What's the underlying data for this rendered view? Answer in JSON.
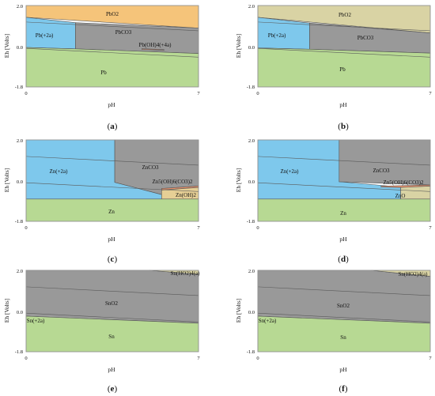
{
  "axes": {
    "xlabel": "pH",
    "ylabel": "Eh [Volts]",
    "xticks": [
      "0",
      "7"
    ],
    "yticks": [
      "2.0",
      "0.0",
      "-1.8"
    ],
    "xlim": [
      0,
      7
    ],
    "ylim": [
      -1.8,
      2.0
    ]
  },
  "colors": {
    "blue": "#7ec8ec",
    "green": "#b7d993",
    "gray": "#999999",
    "orange": "#f5c47a",
    "khaki": "#d9d3a4",
    "tan": "#e6cf95",
    "salmon": "#e58f6a"
  },
  "panels": [
    {
      "letter": "a",
      "caption": "(a)",
      "labels": {
        "r0": "PbO2",
        "r1": "Pb(+2a)",
        "r2": "PbCO3",
        "r3": "Pb(OH)4(+4a)",
        "r4": "Pb"
      },
      "regions": [
        {
          "fill": "orange",
          "points": [
            [
              0,
              2
            ],
            [
              7,
              2
            ],
            [
              7,
              0.95
            ],
            [
              0,
              1.45
            ]
          ]
        },
        {
          "fill": "gray",
          "points": [
            [
              2,
              1.2
            ],
            [
              7,
              0.95
            ],
            [
              7,
              -0.24
            ],
            [
              2,
              -0.02
            ]
          ]
        },
        {
          "fill": "blue",
          "points": [
            [
              0,
              1.45
            ],
            [
              2,
              1.2
            ],
            [
              2,
              -0.02
            ],
            [
              0,
              0.04
            ]
          ]
        },
        {
          "fill": "salmon",
          "points": [
            [
              4.7,
              -0.01
            ],
            [
              5.6,
              -0.06
            ],
            [
              5.6,
              -0.09
            ],
            [
              4.7,
              -0.05
            ]
          ]
        },
        {
          "fill": "green",
          "points": [
            [
              0,
              0.04
            ],
            [
              2,
              -0.02
            ],
            [
              7,
              -0.24
            ],
            [
              7,
              -1.8
            ],
            [
              0,
              -1.8
            ]
          ]
        }
      ],
      "water_lines": [
        [
          [
            0,
            1.23
          ],
          [
            7,
            0.82
          ]
        ],
        [
          [
            0,
            0.0
          ],
          [
            7,
            -0.41
          ]
        ]
      ]
    },
    {
      "letter": "b",
      "caption": "(b)",
      "labels": {
        "r0": "PbO2",
        "r1": "Pb(+2a)",
        "r2": "PbCO3",
        "r3": "Pb"
      },
      "regions": [
        {
          "fill": "khaki",
          "points": [
            [
              0,
              2
            ],
            [
              7,
              2
            ],
            [
              7,
              0.72
            ],
            [
              0,
              1.45
            ]
          ]
        },
        {
          "fill": "gray",
          "points": [
            [
              2.1,
              1.18
            ],
            [
              7,
              0.72
            ],
            [
              7,
              -0.22
            ],
            [
              2.1,
              -0.04
            ]
          ]
        },
        {
          "fill": "blue",
          "points": [
            [
              0,
              1.45
            ],
            [
              2.1,
              1.18
            ],
            [
              2.1,
              -0.04
            ],
            [
              0,
              0.02
            ]
          ]
        },
        {
          "fill": "green",
          "points": [
            [
              0,
              0.02
            ],
            [
              2.1,
              -0.04
            ],
            [
              7,
              -0.22
            ],
            [
              7,
              -1.8
            ],
            [
              0,
              -1.8
            ]
          ]
        }
      ],
      "water_lines": [
        [
          [
            0,
            1.23
          ],
          [
            7,
            0.82
          ]
        ],
        [
          [
            0,
            0.0
          ],
          [
            7,
            -0.41
          ]
        ]
      ]
    },
    {
      "letter": "c",
      "caption": "(c)",
      "labels": {
        "r0": "Zn(+2a)",
        "r1": "ZnCO3",
        "r2": "Zn5(OH)6(CO3)2",
        "r3": "Zn(OH)2",
        "r4": "Zn"
      },
      "regions": [
        {
          "fill": "blue",
          "points": [
            [
              0,
              2
            ],
            [
              3.6,
              2
            ],
            [
              3.6,
              0.02
            ],
            [
              5.5,
              -0.55
            ],
            [
              5.5,
              -0.76
            ],
            [
              0,
              -0.76
            ]
          ]
        },
        {
          "fill": "gray",
          "points": [
            [
              3.6,
              2
            ],
            [
              7,
              2
            ],
            [
              7,
              -0.15
            ],
            [
              5.5,
              -0.27
            ],
            [
              5.5,
              -0.55
            ],
            [
              3.6,
              0.02
            ]
          ]
        },
        {
          "fill": "salmon",
          "points": [
            [
              5.5,
              -0.27
            ],
            [
              7,
              -0.15
            ],
            [
              7,
              -0.22
            ],
            [
              5.5,
              -0.34
            ]
          ]
        },
        {
          "fill": "tan",
          "points": [
            [
              5.5,
              -0.34
            ],
            [
              7,
              -0.22
            ],
            [
              7,
              -0.76
            ],
            [
              5.5,
              -0.76
            ]
          ]
        },
        {
          "fill": "green",
          "points": [
            [
              0,
              -0.76
            ],
            [
              7,
              -0.76
            ],
            [
              7,
              -1.8
            ],
            [
              0,
              -1.8
            ]
          ]
        }
      ],
      "water_lines": [
        [
          [
            0,
            1.23
          ],
          [
            7,
            0.82
          ]
        ],
        [
          [
            0,
            0.0
          ],
          [
            7,
            -0.41
          ]
        ]
      ]
    },
    {
      "letter": "d",
      "caption": "(d)",
      "labels": {
        "r0": "Zn(+2a)",
        "r1": "ZnCO3",
        "r2": "Zn5(OH)6(CO3)2",
        "r3": "ZnO",
        "r4": "Zn"
      },
      "regions": [
        {
          "fill": "blue",
          "points": [
            [
              0,
              2
            ],
            [
              3.3,
              2
            ],
            [
              3.3,
              0.05
            ],
            [
              5.8,
              -0.2
            ],
            [
              5.8,
              -0.76
            ],
            [
              0,
              -0.76
            ]
          ]
        },
        {
          "fill": "gray",
          "points": [
            [
              3.3,
              2
            ],
            [
              7,
              2
            ],
            [
              7,
              -0.1
            ],
            [
              3.3,
              0.05
            ]
          ]
        },
        {
          "fill": "salmon",
          "points": [
            [
              5.0,
              -0.16
            ],
            [
              7,
              -0.1
            ],
            [
              7,
              -0.16
            ],
            [
              5.8,
              -0.22
            ],
            [
              5.0,
              -0.2
            ]
          ]
        },
        {
          "fill": "khaki",
          "points": [
            [
              5.8,
              -0.22
            ],
            [
              7,
              -0.16
            ],
            [
              7,
              -0.76
            ],
            [
              5.8,
              -0.76
            ]
          ]
        },
        {
          "fill": "green",
          "points": [
            [
              0,
              -0.76
            ],
            [
              7,
              -0.76
            ],
            [
              7,
              -1.8
            ],
            [
              0,
              -1.8
            ]
          ]
        }
      ],
      "water_lines": [
        [
          [
            0,
            1.23
          ],
          [
            7,
            0.82
          ]
        ],
        [
          [
            0,
            0.0
          ],
          [
            7,
            -0.41
          ]
        ]
      ]
    },
    {
      "letter": "e",
      "caption": "(e)",
      "labels": {
        "r0": "Sn(HO2)4(a)",
        "r1": "SnO2",
        "r2": "Sn(+2a)",
        "r3": "Sn"
      },
      "regions": [
        {
          "fill": "gray",
          "points": [
            [
              0,
              2
            ],
            [
              5.0,
              2
            ],
            [
              7,
              1.82
            ],
            [
              7,
              -0.47
            ],
            [
              0,
              -0.14
            ]
          ]
        },
        {
          "fill": "khaki",
          "points": [
            [
              5.0,
              2
            ],
            [
              7,
              2
            ],
            [
              7,
              1.82
            ]
          ]
        },
        {
          "fill": "blue",
          "points": [
            [
              0,
              -0.14
            ],
            [
              0.5,
              -0.16
            ],
            [
              0,
              -0.3
            ]
          ]
        },
        {
          "fill": "green",
          "points": [
            [
              0,
              -0.14
            ],
            [
              7,
              -0.47
            ],
            [
              7,
              -1.8
            ],
            [
              0,
              -1.8
            ]
          ]
        }
      ],
      "water_lines": [
        [
          [
            0,
            1.23
          ],
          [
            7,
            0.82
          ]
        ],
        [
          [
            0,
            0.0
          ],
          [
            7,
            -0.41
          ]
        ]
      ]
    },
    {
      "letter": "f",
      "caption": "(f)",
      "labels": {
        "r0": "Sn(HO2)4(a)",
        "r1": "SnO2",
        "r2": "Sn(+2a)",
        "r3": "Sn"
      },
      "regions": [
        {
          "fill": "gray",
          "points": [
            [
              0,
              2
            ],
            [
              4.6,
              2
            ],
            [
              7,
              1.72
            ],
            [
              7,
              -0.47
            ],
            [
              0,
              -0.14
            ]
          ]
        },
        {
          "fill": "khaki",
          "points": [
            [
              4.6,
              2
            ],
            [
              7,
              2
            ],
            [
              7,
              1.72
            ]
          ]
        },
        {
          "fill": "blue",
          "points": [
            [
              0,
              -0.14
            ],
            [
              0.5,
              -0.16
            ],
            [
              0,
              -0.3
            ]
          ]
        },
        {
          "fill": "green",
          "points": [
            [
              0,
              -0.14
            ],
            [
              7,
              -0.47
            ],
            [
              7,
              -1.8
            ],
            [
              0,
              -1.8
            ]
          ]
        }
      ],
      "water_lines": [
        [
          [
            0,
            1.23
          ],
          [
            7,
            0.82
          ]
        ],
        [
          [
            0,
            0.0
          ],
          [
            7,
            -0.41
          ]
        ]
      ]
    }
  ]
}
